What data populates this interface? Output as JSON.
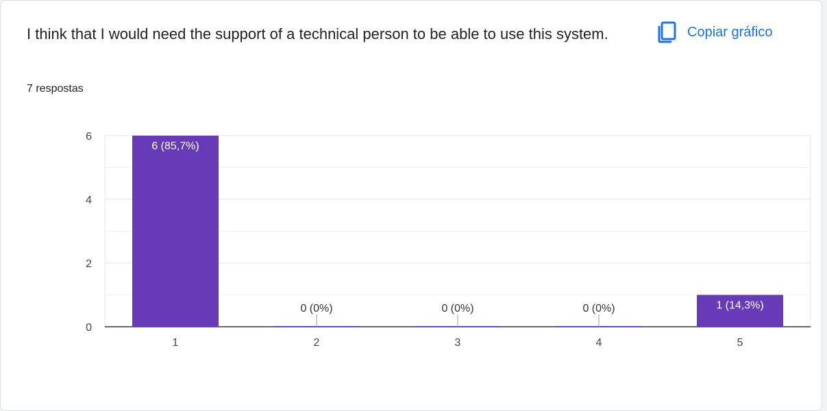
{
  "question": {
    "title": "I think that I would need the support of a technical person to be able to use this system.",
    "response_count": "7 respostas"
  },
  "toolbar": {
    "copy_label": "Copiar gráfico",
    "copy_icon": "copy-icon"
  },
  "colors": {
    "bar": "#673ab7",
    "link": "#1a73e8"
  },
  "chart_data": {
    "type": "bar",
    "categories": [
      "1",
      "2",
      "3",
      "4",
      "5"
    ],
    "values": [
      6,
      0,
      0,
      0,
      1
    ],
    "data_labels": [
      "6 (85,7%)",
      "0 (0%)",
      "0 (0%)",
      "0 (0%)",
      "1 (14,3%)"
    ],
    "yticks": [
      "0",
      "2",
      "4",
      "6"
    ],
    "ylim": [
      0,
      6
    ],
    "grid": true,
    "title": "",
    "xlabel": "",
    "ylabel": ""
  }
}
